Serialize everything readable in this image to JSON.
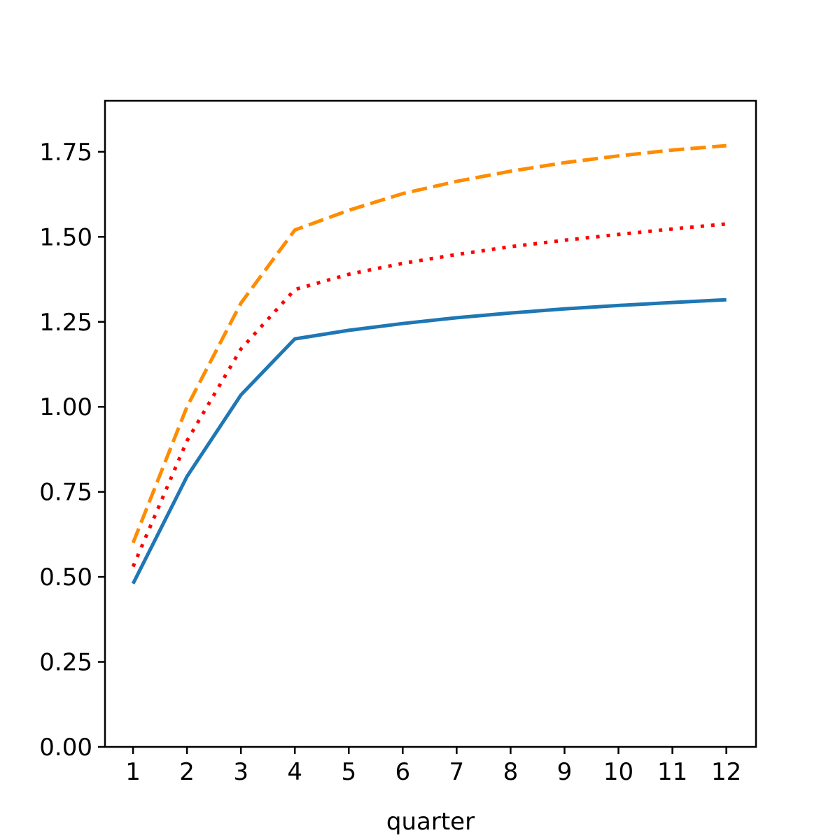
{
  "chart_data": {
    "type": "line",
    "title": "",
    "xlabel": "quarter",
    "ylabel": "",
    "x": [
      1,
      2,
      3,
      4,
      5,
      6,
      7,
      8,
      9,
      10,
      11,
      12
    ],
    "x_ticks": [
      "1",
      "2",
      "3",
      "4",
      "5",
      "6",
      "7",
      "8",
      "9",
      "10",
      "11",
      "12"
    ],
    "xlim": [
      0.48,
      12.55
    ],
    "ylim": [
      0,
      1.9
    ],
    "y_ticks": [
      "0.00",
      "0.25",
      "0.50",
      "0.75",
      "1.00",
      "1.25",
      "1.50",
      "1.75"
    ],
    "grid": false,
    "legend": "none",
    "series": [
      {
        "color": "#1f77b4",
        "line_style": "solid",
        "values": [
          0.48,
          0.795,
          1.035,
          1.2,
          1.225,
          1.245,
          1.262,
          1.276,
          1.288,
          1.298,
          1.307,
          1.315
        ]
      },
      {
        "color": "#ff0000",
        "line_style": "dotted",
        "values": [
          0.53,
          0.9,
          1.17,
          1.345,
          1.39,
          1.422,
          1.448,
          1.471,
          1.49,
          1.507,
          1.523,
          1.538
        ]
      },
      {
        "color": "#ff8c00",
        "line_style": "dashed",
        "values": [
          0.6,
          1.0,
          1.305,
          1.52,
          1.578,
          1.627,
          1.663,
          1.693,
          1.718,
          1.738,
          1.755,
          1.768
        ]
      }
    ]
  }
}
